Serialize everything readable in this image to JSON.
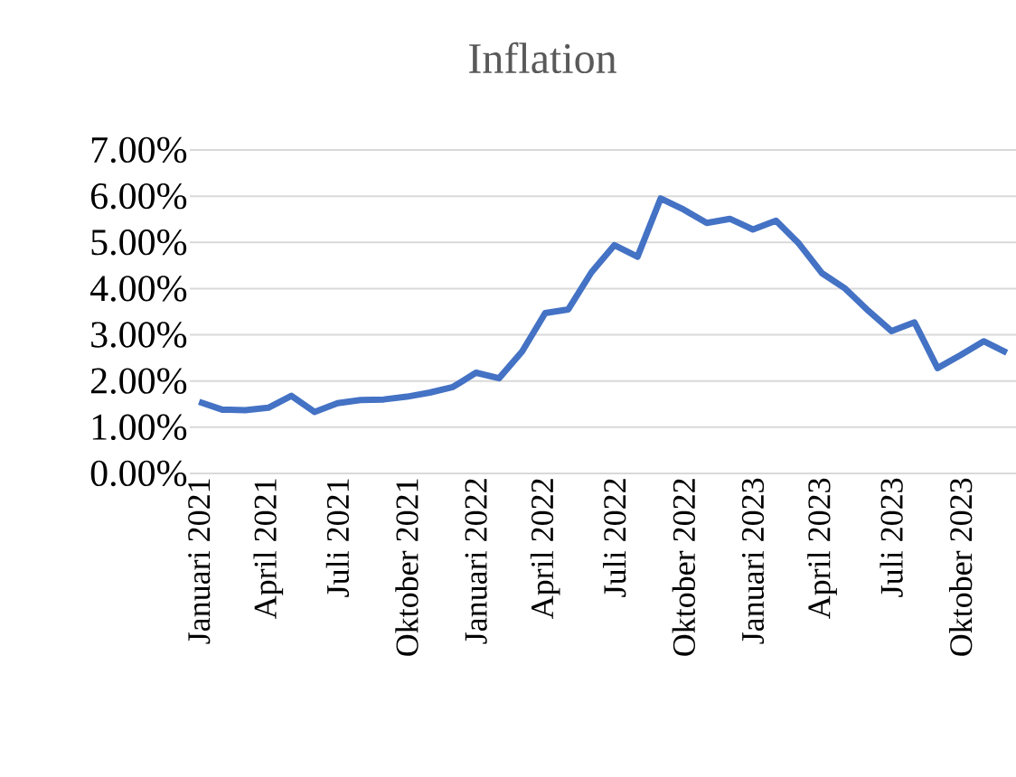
{
  "chart_data": {
    "type": "line",
    "title": "Inflation",
    "categories": [
      "Januari 2021",
      null,
      null,
      "April 2021",
      null,
      null,
      "Juli 2021",
      null,
      null,
      "Oktober 2021",
      null,
      null,
      "Januari 2022",
      null,
      null,
      "April 2022",
      null,
      null,
      "Juli 2022",
      null,
      null,
      "Oktober 2022",
      null,
      null,
      "Januari 2023",
      null,
      null,
      "April 2023",
      null,
      null,
      "Juli 2023",
      null,
      null,
      "Oktober 2023",
      null,
      null
    ],
    "series": [
      {
        "color": "#4472c4",
        "values": [
          1.55,
          1.38,
          1.37,
          1.42,
          1.68,
          1.33,
          1.52,
          1.59,
          1.6,
          1.66,
          1.75,
          1.87,
          2.18,
          2.06,
          2.64,
          3.47,
          3.55,
          4.35,
          4.94,
          4.69,
          5.95,
          5.71,
          5.42,
          5.51,
          5.28,
          5.47,
          4.97,
          4.33,
          4.0,
          3.52,
          3.08,
          3.27,
          2.28,
          2.56,
          2.86,
          2.61
        ]
      }
    ],
    "ylim": [
      0,
      7
    ],
    "yticks": [
      {
        "value": 0,
        "label": "0.00%"
      },
      {
        "value": 1,
        "label": "1.00%"
      },
      {
        "value": 2,
        "label": "2.00%"
      },
      {
        "value": 3,
        "label": "3.00%"
      },
      {
        "value": 4,
        "label": "4.00%"
      },
      {
        "value": 5,
        "label": "5.00%"
      },
      {
        "value": 6,
        "label": "6.00%"
      },
      {
        "value": 7,
        "label": "7.00%"
      }
    ],
    "grid": "y",
    "marker": "none",
    "line_style": "solid"
  }
}
